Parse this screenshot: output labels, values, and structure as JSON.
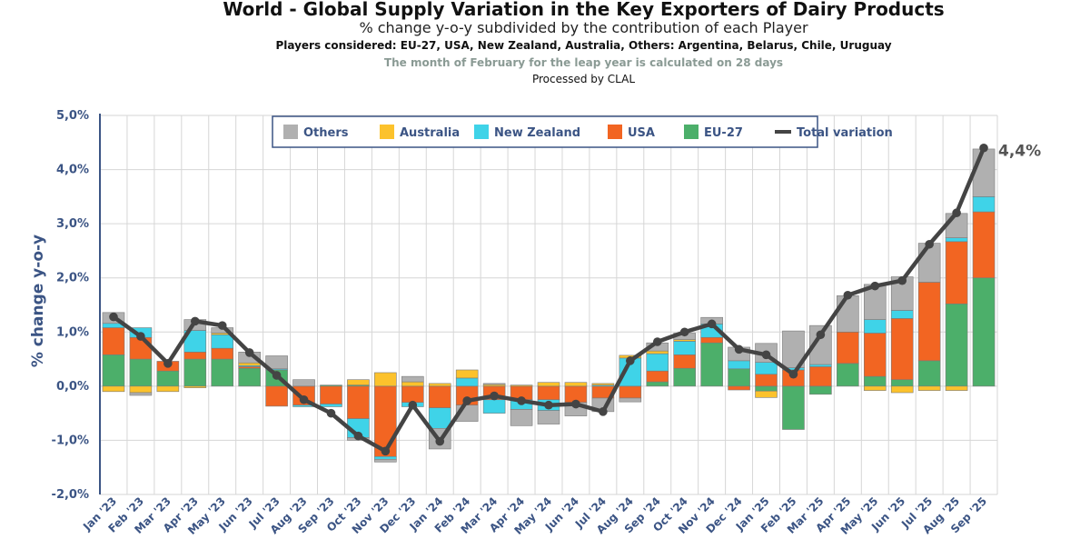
{
  "header": {
    "title": "World - Global Supply Variation in the Key Exporters of Dairy Products",
    "subtitle": "% change y-o-y subdivided by the contribution of each Player",
    "players": "Players considered: EU-27, USA, New Zealand, Australia, Others: Argentina, Belarus, Chile, Uruguay",
    "note": "The month of February for the leap year is calculated on 28 days",
    "processed": "Processed by CLAL"
  },
  "chart_data": {
    "type": "bar",
    "stacked": true,
    "ylabel": "% change y-o-y",
    "ylim": [
      -2.0,
      5.0
    ],
    "yticks": [
      "-2,0%",
      "-1,0%",
      "0,0%",
      "1,0%",
      "2,0%",
      "3,0%",
      "4,0%",
      "5,0%"
    ],
    "grid": true,
    "legend_position": "top",
    "categories": [
      "Jan '23",
      "Feb '23",
      "Mar '23",
      "Apr '23",
      "May '23",
      "Jun '23",
      "Jul '23",
      "Aug '23",
      "Sep '23",
      "Oct '23",
      "Nov '23",
      "Dec '23",
      "Jan '24",
      "Feb '24",
      "Mar '24",
      "Apr '24",
      "May '24",
      "Jun '24",
      "Jul '24",
      "Aug '24",
      "Sep '24",
      "Oct '24",
      "Nov '24",
      "Dec '24",
      "Jan '25",
      "Feb '25",
      "Mar '25",
      "Apr '25",
      "May '25",
      "Jun '25",
      "Jul '25",
      "Aug '25",
      "Sep '25"
    ],
    "series": [
      {
        "name": "EU-27",
        "color": "#4caf6a",
        "values": [
          0.58,
          0.5,
          0.28,
          0.5,
          0.5,
          0.33,
          0.3,
          0.0,
          0.02,
          0.02,
          0.0,
          0.0,
          0.0,
          0.0,
          0.0,
          0.0,
          0.0,
          0.0,
          0.0,
          0.0,
          0.08,
          0.33,
          0.8,
          0.32,
          -0.09,
          -0.8,
          -0.15,
          0.42,
          0.18,
          0.12,
          0.47,
          1.52,
          2.0
        ]
      },
      {
        "name": "USA",
        "color": "#f26522",
        "values": [
          0.5,
          0.4,
          0.18,
          0.13,
          0.2,
          0.03,
          -0.37,
          -0.35,
          -0.33,
          -0.6,
          -1.3,
          -0.3,
          -0.4,
          -0.35,
          -0.25,
          -0.25,
          -0.25,
          -0.3,
          -0.22,
          -0.22,
          0.2,
          0.25,
          0.1,
          -0.07,
          0.22,
          0.3,
          0.36,
          0.58,
          0.8,
          1.13,
          1.45,
          1.15,
          1.22
        ]
      },
      {
        "name": "New Zealand",
        "color": "#3fd3e8",
        "values": [
          0.08,
          0.18,
          0.0,
          0.4,
          0.25,
          0.02,
          0.02,
          -0.03,
          -0.05,
          -0.35,
          -0.05,
          -0.08,
          -0.38,
          0.15,
          -0.25,
          -0.18,
          -0.2,
          0.0,
          0.02,
          0.52,
          0.32,
          0.25,
          0.25,
          0.15,
          0.22,
          0.04,
          0.04,
          0.0,
          0.25,
          0.15,
          0.0,
          0.07,
          0.28
        ]
      },
      {
        "name": "Australia",
        "color": "#fcc22c",
        "values": [
          -0.1,
          -0.12,
          -0.1,
          -0.03,
          0.03,
          0.05,
          0.0,
          0.0,
          0.0,
          0.1,
          0.25,
          0.08,
          0.05,
          0.15,
          0.03,
          0.02,
          0.07,
          0.07,
          0.03,
          0.05,
          0.05,
          0.03,
          0.0,
          0.0,
          -0.12,
          0.0,
          0.0,
          0.0,
          -0.08,
          -0.12,
          -0.08,
          -0.08,
          0.0
        ]
      },
      {
        "name": "Others",
        "color": "#b0b0b0",
        "values": [
          0.2,
          -0.05,
          0.0,
          0.2,
          0.1,
          0.2,
          0.24,
          0.12,
          0.0,
          -0.05,
          -0.05,
          0.1,
          -0.38,
          -0.3,
          0.02,
          -0.3,
          -0.25,
          -0.25,
          -0.25,
          -0.07,
          0.15,
          0.12,
          0.12,
          0.25,
          0.35,
          0.68,
          0.72,
          0.67,
          0.65,
          0.62,
          0.72,
          0.45,
          0.88
        ]
      }
    ],
    "total_variation": {
      "name": "Total variation",
      "color": "#444444",
      "values": [
        1.28,
        0.92,
        0.42,
        1.2,
        1.12,
        0.62,
        0.2,
        -0.25,
        -0.5,
        -0.92,
        -1.2,
        -0.35,
        -1.02,
        -0.27,
        -0.18,
        -0.27,
        -0.35,
        -0.33,
        -0.47,
        0.47,
        0.82,
        1.0,
        1.15,
        0.68,
        0.58,
        0.22,
        0.95,
        1.68,
        1.85,
        1.95,
        2.62,
        3.2,
        4.4
      ]
    },
    "end_label": "4,4%"
  }
}
